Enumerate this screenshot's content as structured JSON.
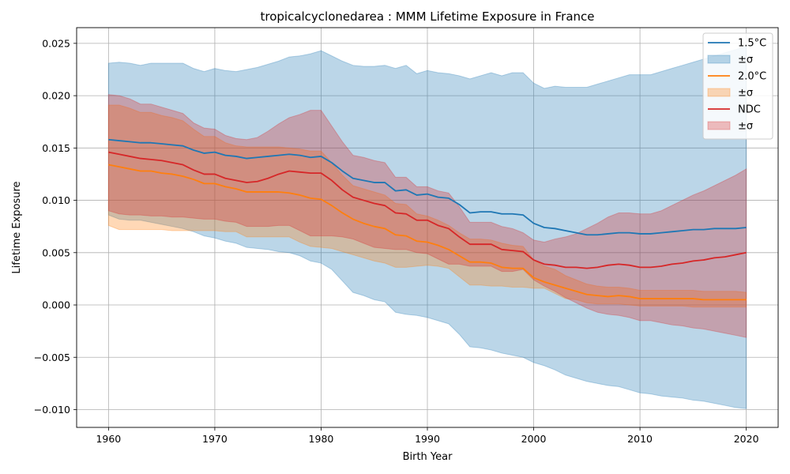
{
  "chart_data": {
    "type": "line",
    "title": "tropicalcyclonedarea : MMM Lifetime Exposure in France",
    "xlabel": "Birth Year",
    "ylabel": "Lifetime Exposure",
    "xlim": [
      1957,
      2023
    ],
    "ylim": [
      -0.0117,
      0.0265
    ],
    "xticks": [
      1960,
      1970,
      1980,
      1990,
      2000,
      2010,
      2020
    ],
    "xtick_labels": [
      "1960",
      "1970",
      "1980",
      "1990",
      "2000",
      "2010",
      "2020"
    ],
    "yticks": [
      -0.01,
      -0.005,
      0.0,
      0.005,
      0.01,
      0.015,
      0.02,
      0.025
    ],
    "ytick_labels": [
      "−0.010",
      "−0.005",
      "0.000",
      "0.005",
      "0.010",
      "0.015",
      "0.020",
      "0.025"
    ],
    "grid": true,
    "legend_position": "top-right",
    "x": [
      1960,
      1961,
      1962,
      1963,
      1964,
      1965,
      1966,
      1967,
      1968,
      1969,
      1970,
      1971,
      1972,
      1973,
      1974,
      1975,
      1976,
      1977,
      1978,
      1979,
      1980,
      1981,
      1982,
      1983,
      1984,
      1985,
      1986,
      1987,
      1988,
      1989,
      1990,
      1991,
      1992,
      1993,
      1994,
      1995,
      1996,
      1997,
      1998,
      1999,
      2000,
      2001,
      2002,
      2003,
      2004,
      2005,
      2006,
      2007,
      2008,
      2009,
      2010,
      2011,
      2012,
      2013,
      2014,
      2015,
      2016,
      2017,
      2018,
      2019,
      2020
    ],
    "series": [
      {
        "name": "1.5°C",
        "band_label": "±σ",
        "color": "#1f77b4",
        "values": [
          0.0158,
          0.0157,
          0.0156,
          0.0155,
          0.0155,
          0.0154,
          0.0153,
          0.0152,
          0.0148,
          0.0145,
          0.0146,
          0.0143,
          0.0142,
          0.014,
          0.0141,
          0.0142,
          0.0143,
          0.0144,
          0.0143,
          0.0141,
          0.0142,
          0.0136,
          0.0128,
          0.0121,
          0.0119,
          0.0117,
          0.0117,
          0.0109,
          0.011,
          0.0105,
          0.0106,
          0.0103,
          0.0102,
          0.0096,
          0.0088,
          0.0089,
          0.0089,
          0.0087,
          0.0087,
          0.0086,
          0.0078,
          0.0074,
          0.0073,
          0.0071,
          0.0069,
          0.0067,
          0.0067,
          0.0068,
          0.0069,
          0.0069,
          0.0068,
          0.0068,
          0.0069,
          0.007,
          0.0071,
          0.0072,
          0.0072,
          0.0073,
          0.0073,
          0.0073,
          0.0074
        ],
        "upper": [
          0.0231,
          0.0232,
          0.0231,
          0.0229,
          0.0231,
          0.0231,
          0.0231,
          0.0231,
          0.0226,
          0.0223,
          0.0226,
          0.0224,
          0.0223,
          0.0225,
          0.0227,
          0.023,
          0.0233,
          0.0237,
          0.0238,
          0.024,
          0.0243,
          0.0238,
          0.0233,
          0.0229,
          0.0228,
          0.0228,
          0.0229,
          0.0226,
          0.0229,
          0.0221,
          0.0224,
          0.0222,
          0.0221,
          0.0219,
          0.0216,
          0.0219,
          0.0222,
          0.0219,
          0.0222,
          0.0222,
          0.0212,
          0.0207,
          0.0209,
          0.0208,
          0.0208,
          0.0208,
          0.0211,
          0.0214,
          0.0217,
          0.022,
          0.022,
          0.022,
          0.0223,
          0.0226,
          0.0229,
          0.0232,
          0.0235,
          0.0238,
          0.0241,
          0.0244,
          0.0247
        ],
        "lower": [
          0.0086,
          0.0082,
          0.0081,
          0.0081,
          0.0079,
          0.0077,
          0.0075,
          0.0073,
          0.007,
          0.0066,
          0.0064,
          0.0061,
          0.0059,
          0.0055,
          0.0054,
          0.0053,
          0.0051,
          0.005,
          0.0047,
          0.0042,
          0.004,
          0.0034,
          0.0023,
          0.0012,
          0.0009,
          0.0005,
          0.0003,
          -0.0007,
          -0.0009,
          -0.001,
          -0.0012,
          -0.0015,
          -0.0018,
          -0.0028,
          -0.004,
          -0.0041,
          -0.0043,
          -0.0046,
          -0.0048,
          -0.005,
          -0.0055,
          -0.0058,
          -0.0062,
          -0.0067,
          -0.007,
          -0.0073,
          -0.0075,
          -0.0077,
          -0.0078,
          -0.0081,
          -0.0084,
          -0.0085,
          -0.0087,
          -0.0088,
          -0.0089,
          -0.0091,
          -0.0092,
          -0.0094,
          -0.0096,
          -0.0098,
          -0.0099
        ]
      },
      {
        "name": "2.0°C",
        "band_label": "±σ",
        "color": "#ff7f0e",
        "values": [
          0.0134,
          0.0132,
          0.013,
          0.0128,
          0.0128,
          0.0126,
          0.0125,
          0.0123,
          0.012,
          0.0116,
          0.0116,
          0.0113,
          0.0111,
          0.0108,
          0.0108,
          0.0108,
          0.0108,
          0.0107,
          0.0105,
          0.0102,
          0.0101,
          0.0095,
          0.0088,
          0.0082,
          0.0078,
          0.0075,
          0.0073,
          0.0067,
          0.0066,
          0.0061,
          0.006,
          0.0057,
          0.0053,
          0.0047,
          0.0041,
          0.0041,
          0.004,
          0.0036,
          0.0035,
          0.0035,
          0.0026,
          0.0022,
          0.0019,
          0.0016,
          0.0013,
          0.001,
          0.0009,
          0.0008,
          0.0009,
          0.0008,
          0.0006,
          0.0006,
          0.0006,
          0.0006,
          0.0006,
          0.0006,
          0.0005,
          0.0005,
          0.0005,
          0.0005,
          0.0005
        ],
        "upper": [
          0.0191,
          0.0191,
          0.0188,
          0.0184,
          0.0184,
          0.0181,
          0.0179,
          0.0176,
          0.0168,
          0.0161,
          0.0161,
          0.0155,
          0.0152,
          0.0151,
          0.0151,
          0.0151,
          0.0151,
          0.015,
          0.0149,
          0.0147,
          0.0147,
          0.0136,
          0.0124,
          0.0114,
          0.0111,
          0.0108,
          0.0105,
          0.0097,
          0.0096,
          0.0087,
          0.0085,
          0.0081,
          0.0076,
          0.0069,
          0.0063,
          0.0063,
          0.0062,
          0.0059,
          0.0057,
          0.0056,
          0.0043,
          0.0037,
          0.0034,
          0.0028,
          0.0024,
          0.002,
          0.0018,
          0.0017,
          0.0017,
          0.0016,
          0.0014,
          0.0014,
          0.0014,
          0.0014,
          0.0014,
          0.0014,
          0.0013,
          0.0013,
          0.0013,
          0.0013,
          0.0012
        ],
        "lower": [
          0.0076,
          0.0072,
          0.0072,
          0.0072,
          0.0072,
          0.0072,
          0.0071,
          0.0071,
          0.0071,
          0.0071,
          0.0071,
          0.007,
          0.007,
          0.0065,
          0.0065,
          0.0065,
          0.0065,
          0.0065,
          0.006,
          0.0056,
          0.0055,
          0.0054,
          0.0051,
          0.0048,
          0.0045,
          0.0042,
          0.004,
          0.0036,
          0.0036,
          0.0037,
          0.0038,
          0.0037,
          0.0035,
          0.0027,
          0.0019,
          0.0019,
          0.0018,
          0.0018,
          0.0017,
          0.0017,
          0.0016,
          0.0016,
          0.0011,
          0.0006,
          0.0005,
          0.0002,
          0.0001,
          0.0001,
          0.0001,
          0.0,
          -0.0001,
          -0.0001,
          -0.0001,
          -0.0001,
          -0.0001,
          -0.0002,
          -0.0002,
          -0.0002,
          -0.0002,
          -0.0002,
          -0.0002
        ]
      },
      {
        "name": "NDC",
        "band_label": "±σ",
        "color": "#d62728",
        "values": [
          0.0146,
          0.0144,
          0.0142,
          0.014,
          0.0139,
          0.0138,
          0.0136,
          0.0134,
          0.0129,
          0.0125,
          0.0125,
          0.0121,
          0.0119,
          0.0117,
          0.0118,
          0.0121,
          0.0125,
          0.0128,
          0.0127,
          0.0126,
          0.0126,
          0.0119,
          0.011,
          0.0103,
          0.01,
          0.0097,
          0.0095,
          0.0088,
          0.0087,
          0.0081,
          0.0081,
          0.0076,
          0.0073,
          0.0065,
          0.0058,
          0.0058,
          0.0058,
          0.0053,
          0.0052,
          0.0051,
          0.0043,
          0.0039,
          0.0038,
          0.0036,
          0.0036,
          0.0035,
          0.0036,
          0.0038,
          0.0039,
          0.0038,
          0.0036,
          0.0036,
          0.0037,
          0.0039,
          0.004,
          0.0042,
          0.0043,
          0.0045,
          0.0046,
          0.0048,
          0.005
        ],
        "upper": [
          0.0201,
          0.02,
          0.0197,
          0.0192,
          0.0192,
          0.0189,
          0.0186,
          0.0183,
          0.0174,
          0.0169,
          0.0168,
          0.0162,
          0.0159,
          0.0158,
          0.016,
          0.0166,
          0.0173,
          0.0179,
          0.0182,
          0.0186,
          0.0186,
          0.0171,
          0.0156,
          0.0143,
          0.0141,
          0.0138,
          0.0136,
          0.0122,
          0.0122,
          0.0113,
          0.0113,
          0.0109,
          0.0107,
          0.0094,
          0.0079,
          0.0079,
          0.0079,
          0.0075,
          0.0073,
          0.0069,
          0.0062,
          0.006,
          0.0063,
          0.0065,
          0.0068,
          0.0073,
          0.0078,
          0.0084,
          0.0088,
          0.0088,
          0.0087,
          0.0087,
          0.009,
          0.0095,
          0.01,
          0.0105,
          0.0109,
          0.0114,
          0.0119,
          0.0124,
          0.013
        ],
        "lower": [
          0.009,
          0.0087,
          0.0086,
          0.0086,
          0.0085,
          0.0085,
          0.0084,
          0.0084,
          0.0083,
          0.0082,
          0.0082,
          0.008,
          0.0079,
          0.0075,
          0.0075,
          0.0075,
          0.0076,
          0.0076,
          0.0071,
          0.0066,
          0.0066,
          0.0066,
          0.0065,
          0.0063,
          0.0059,
          0.0055,
          0.0054,
          0.0053,
          0.0053,
          0.005,
          0.0049,
          0.0044,
          0.0039,
          0.0039,
          0.0037,
          0.0037,
          0.0037,
          0.0032,
          0.0032,
          0.0034,
          0.0024,
          0.0018,
          0.0013,
          0.0007,
          0.0002,
          -0.0003,
          -0.0007,
          -0.0009,
          -0.001,
          -0.0012,
          -0.0015,
          -0.0015,
          -0.0017,
          -0.0019,
          -0.002,
          -0.0022,
          -0.0023,
          -0.0025,
          -0.0027,
          -0.0029,
          -0.0031
        ]
      }
    ]
  }
}
